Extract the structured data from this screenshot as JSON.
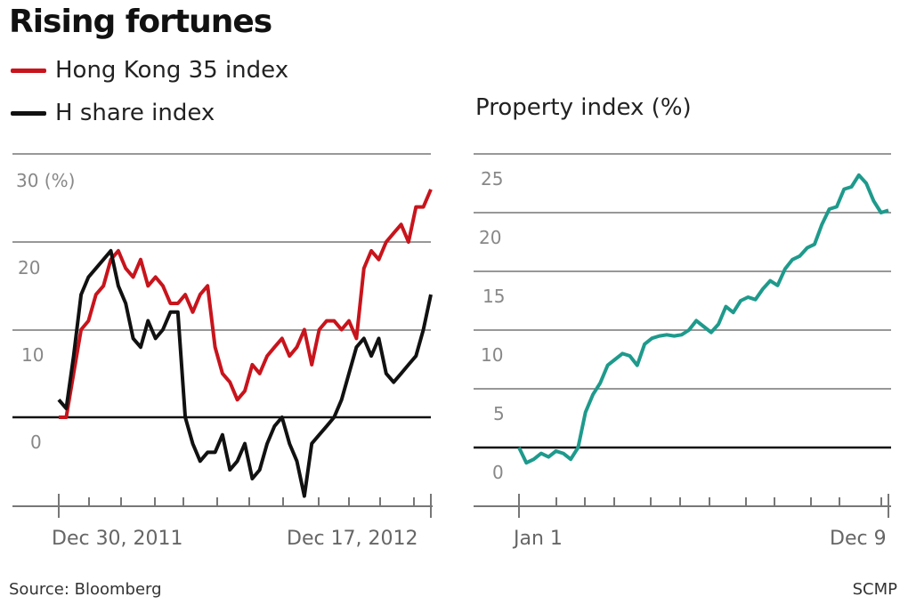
{
  "header": {
    "title": "Rising fortunes",
    "legend": [
      {
        "label": "Hong Kong 35 index",
        "color": "#c8141c"
      },
      {
        "label": "H share index",
        "color": "#111111"
      }
    ],
    "right_title": "Property index (%)"
  },
  "footer": {
    "source": "Source: Bloomberg",
    "credit": "SCMP"
  },
  "chart_data": [
    {
      "type": "line",
      "title": "Hong Kong 35 index vs H share index",
      "ylabel": "(%)",
      "ylim": [
        -10,
        30
      ],
      "yticks": [
        {
          "value": 30,
          "label": "30 (%)"
        },
        {
          "value": 20,
          "label": "20"
        },
        {
          "value": 10,
          "label": "10"
        },
        {
          "value": 0,
          "label": "0"
        }
      ],
      "x_labels": [
        "Dec 30, 2011",
        "Dec 17, 2012"
      ],
      "x": [
        0,
        2,
        4,
        6,
        8,
        10,
        12,
        14,
        16,
        18,
        20,
        22,
        24,
        26,
        28,
        30,
        32,
        34,
        36,
        38,
        40,
        42,
        44,
        46,
        48,
        50,
        52,
        54,
        56,
        58,
        60,
        62,
        64,
        66,
        68,
        70,
        72,
        74,
        76,
        78,
        80,
        82,
        84,
        86,
        88,
        90,
        92,
        94,
        96,
        98,
        100
      ],
      "series": [
        {
          "name": "Hong Kong 35 index",
          "color": "#c8141c",
          "values": [
            0,
            0,
            5,
            10,
            11,
            14,
            15,
            18,
            19,
            17,
            16,
            18,
            15,
            16,
            15,
            13,
            13,
            14,
            12,
            14,
            15,
            8,
            5,
            4,
            2,
            3,
            6,
            5,
            7,
            8,
            9,
            7,
            8,
            10,
            6,
            10,
            11,
            11,
            10,
            11,
            9,
            17,
            19,
            18,
            20,
            21,
            22,
            20,
            24,
            24,
            26
          ]
        },
        {
          "name": "H share index",
          "color": "#111111",
          "values": [
            2,
            1,
            7,
            14,
            16,
            17,
            18,
            19,
            15,
            13,
            9,
            8,
            11,
            9,
            10,
            12,
            12,
            0,
            -3,
            -5,
            -4,
            -4,
            -2,
            -6,
            -5,
            -3,
            -7,
            -6,
            -3,
            -1,
            0,
            -3,
            -5,
            -9,
            -3,
            -2,
            -1,
            0,
            2,
            5,
            8,
            9,
            7,
            9,
            5,
            4,
            5,
            6,
            7,
            10,
            14
          ]
        }
      ]
    },
    {
      "type": "line",
      "title": "Property index (%)",
      "ylim": [
        -5,
        25
      ],
      "yticks": [
        {
          "value": 25,
          "label": "25"
        },
        {
          "value": 20,
          "label": "20"
        },
        {
          "value": 15,
          "label": "15"
        },
        {
          "value": 10,
          "label": "10"
        },
        {
          "value": 5,
          "label": "5"
        },
        {
          "value": 0,
          "label": "0"
        }
      ],
      "x_labels": [
        "Jan 1",
        "Dec 9"
      ],
      "x": [
        0,
        2,
        4,
        6,
        8,
        10,
        12,
        14,
        16,
        18,
        20,
        22,
        24,
        26,
        28,
        30,
        32,
        34,
        36,
        38,
        40,
        42,
        44,
        46,
        48,
        50,
        52,
        54,
        56,
        58,
        60,
        62,
        64,
        66,
        68,
        70,
        72,
        74,
        76,
        78,
        80,
        82,
        84,
        86,
        88,
        90,
        92,
        94,
        96,
        98,
        100
      ],
      "series": [
        {
          "name": "Property index",
          "color": "#1e9a8c",
          "values": [
            0,
            -1.3,
            -1,
            -0.5,
            -0.8,
            -0.3,
            -0.5,
            -1,
            0,
            3,
            4.5,
            5.5,
            7,
            7.5,
            8,
            7.8,
            7,
            8.8,
            9.3,
            9.5,
            9.6,
            9.5,
            9.6,
            10,
            10.8,
            10.3,
            9.8,
            10.5,
            12,
            11.5,
            12.5,
            12.8,
            12.6,
            13.5,
            14.2,
            13.8,
            15.2,
            16,
            16.3,
            17,
            17.3,
            19,
            20.3,
            20.5,
            22,
            22.2,
            23.2,
            22.5,
            21,
            20,
            20.2
          ]
        }
      ]
    }
  ]
}
